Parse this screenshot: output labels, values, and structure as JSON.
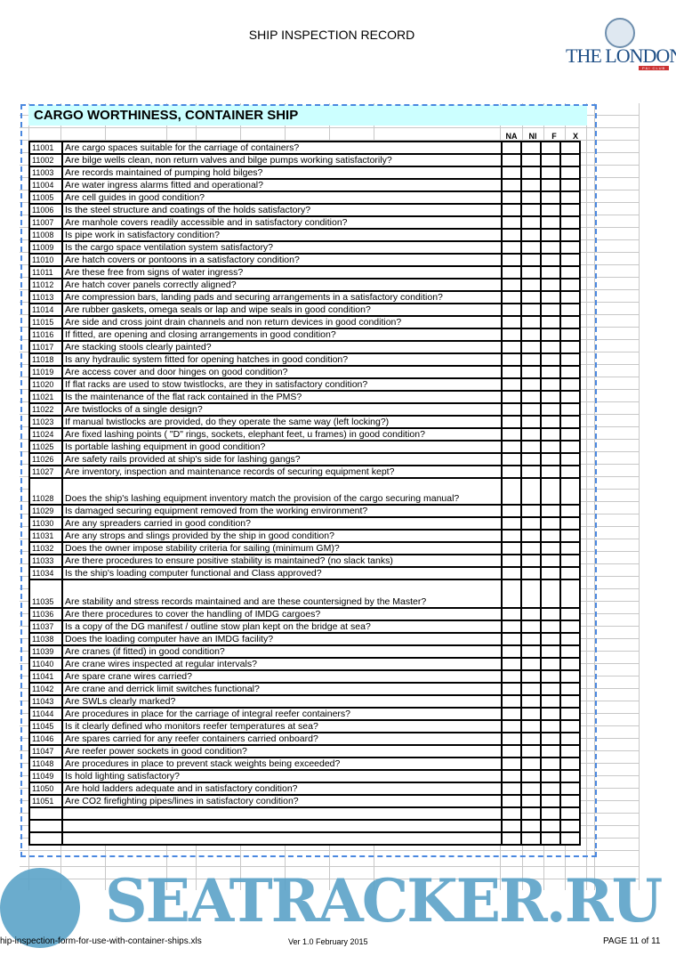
{
  "header": {
    "title": "SHIP INSPECTION RECORD",
    "logo_text": "THE LONDON",
    "logo_subtext": "P&I CLUB"
  },
  "section": {
    "title": "CARGO WORTHINESS, CONTAINER SHIP",
    "columns": [
      "NA",
      "NI",
      "F",
      "X"
    ]
  },
  "rows": [
    {
      "id": "11001",
      "q": "Are cargo spaces suitable for the carriage of containers?"
    },
    {
      "id": "11002",
      "q": "Are bilge wells clean, non return valves and bilge pumps working satisfactorily?"
    },
    {
      "id": "11003",
      "q": "Are records maintained of pumping hold bilges?"
    },
    {
      "id": "11004",
      "q": "Are water ingress alarms fitted and operational?"
    },
    {
      "id": "11005",
      "q": "Are cell guides in good condition?"
    },
    {
      "id": "11006",
      "q": "Is the steel structure and coatings of the holds satisfactory?"
    },
    {
      "id": "11007",
      "q": "Are manhole covers readily accessible and in satisfactory condition?"
    },
    {
      "id": "11008",
      "q": "Is pipe work in satisfactory condition?"
    },
    {
      "id": "11009",
      "q": "Is the cargo space ventilation system satisfactory?"
    },
    {
      "id": "11010",
      "q": "Are hatch covers or pontoons in a satisfactory condition?"
    },
    {
      "id": "11011",
      "q": "Are these free from signs of water ingress?"
    },
    {
      "id": "11012",
      "q": "Are hatch cover panels correctly aligned?"
    },
    {
      "id": "11013",
      "q": "Are compression bars, landing pads and securing arrangements in a satisfactory condition?"
    },
    {
      "id": "11014",
      "q": "Are rubber gaskets, omega seals or lap and wipe seals in good condition?"
    },
    {
      "id": "11015",
      "q": "Are side and cross joint drain channels and non return devices in good condition?"
    },
    {
      "id": "11016",
      "q": "If fitted, are opening and closing arrangements in good condition?"
    },
    {
      "id": "11017",
      "q": "Are stacking stools clearly painted?"
    },
    {
      "id": "11018",
      "q": "Is any hydraulic system fitted for opening hatches in good condition?"
    },
    {
      "id": "11019",
      "q": "Are access cover and door hinges on good condition?"
    },
    {
      "id": "11020",
      "q": "If flat racks are used to stow twistlocks, are they in satisfactory condition?"
    },
    {
      "id": "11021",
      "q": "Is the maintenance of the flat rack contained in the PMS?"
    },
    {
      "id": "11022",
      "q": "Are twistlocks of a single design?"
    },
    {
      "id": "11023",
      "q": "If manual twistlocks are provided, do they operate the same way (left locking?)"
    },
    {
      "id": "11024",
      "q": "Are fixed lashing points ( \"D\" rings, sockets, elephant feet, u frames) in good condition?"
    },
    {
      "id": "11025",
      "q": "Is portable lashing equipment in good condition?"
    },
    {
      "id": "11026",
      "q": "Are safety rails provided at ship's side for lashing gangs?"
    },
    {
      "id": "11027",
      "q": "Are inventory, inspection and maintenance records of securing equipment kept?"
    },
    {
      "id": "11028",
      "q": "Does the ship's lashing equipment inventory match the provision of the cargo securing manual?"
    },
    {
      "id": "11029",
      "q": "Is damaged securing equipment removed from the working environment?"
    },
    {
      "id": "11030",
      "q": "Are any spreaders carried in good condition?"
    },
    {
      "id": "11031",
      "q": "Are any strops and slings provided by the ship in good condition?"
    },
    {
      "id": "11032",
      "q": "Does the owner impose stability criteria for sailing (minimum GM)?"
    },
    {
      "id": "11033",
      "q": "Are there procedures to ensure positive stability is maintained? (no slack tanks)"
    },
    {
      "id": "11034",
      "q": "Is the ship's loading computer functional and Class approved?"
    },
    {
      "id": "11035",
      "q": "Are stability and stress records maintained and are these countersigned by the Master?"
    },
    {
      "id": "11036",
      "q": "Are there procedures to cover the handling of IMDG cargoes?"
    },
    {
      "id": "11037",
      "q": "Is a copy of the DG manifest / outline stow plan kept on the bridge at sea?"
    },
    {
      "id": "11038",
      "q": "Does the loading computer have an IMDG facility?"
    },
    {
      "id": "11039",
      "q": "Are cranes (if fitted) in good condition?"
    },
    {
      "id": "11040",
      "q": "Are crane wires inspected at regular intervals?"
    },
    {
      "id": "11041",
      "q": "Are spare crane wires carried?"
    },
    {
      "id": "11042",
      "q": "Are crane and derrick limit switches functional?"
    },
    {
      "id": "11043",
      "q": "Are SWLs clearly marked?"
    },
    {
      "id": "11044",
      "q": "Are procedures in place for the carriage of integral reefer containers?"
    },
    {
      "id": "11045",
      "q": "Is it clearly defined who monitors reefer temperatures at sea?"
    },
    {
      "id": "11046",
      "q": "Are spares carried for any reefer containers carried onboard?"
    },
    {
      "id": "11047",
      "q": "Are reefer power sockets in good condition?"
    },
    {
      "id": "11048",
      "q": "Are procedures in place to prevent stack weights being exceeded?"
    },
    {
      "id": "11049",
      "q": "Is hold lighting satisfactory?"
    },
    {
      "id": "11050",
      "q": "Are hold ladders adequate and in satisfactory condition?"
    },
    {
      "id": "11051",
      "q": "Are CO2 firefighting pipes/lines in satisfactory condition?"
    }
  ],
  "footer": {
    "filename": "hip-inspection-form-for-use-with-container-ships.xls",
    "version": "Ver 1.0 February 2015",
    "page": "PAGE 11 of  11"
  },
  "watermark": {
    "text": "SEATRACKER.RU"
  },
  "colors": {
    "accent_band": "#ccffff",
    "page_border": "#4a88e0",
    "watermark": "#5ba3c8",
    "logo": "#1f4f86"
  }
}
